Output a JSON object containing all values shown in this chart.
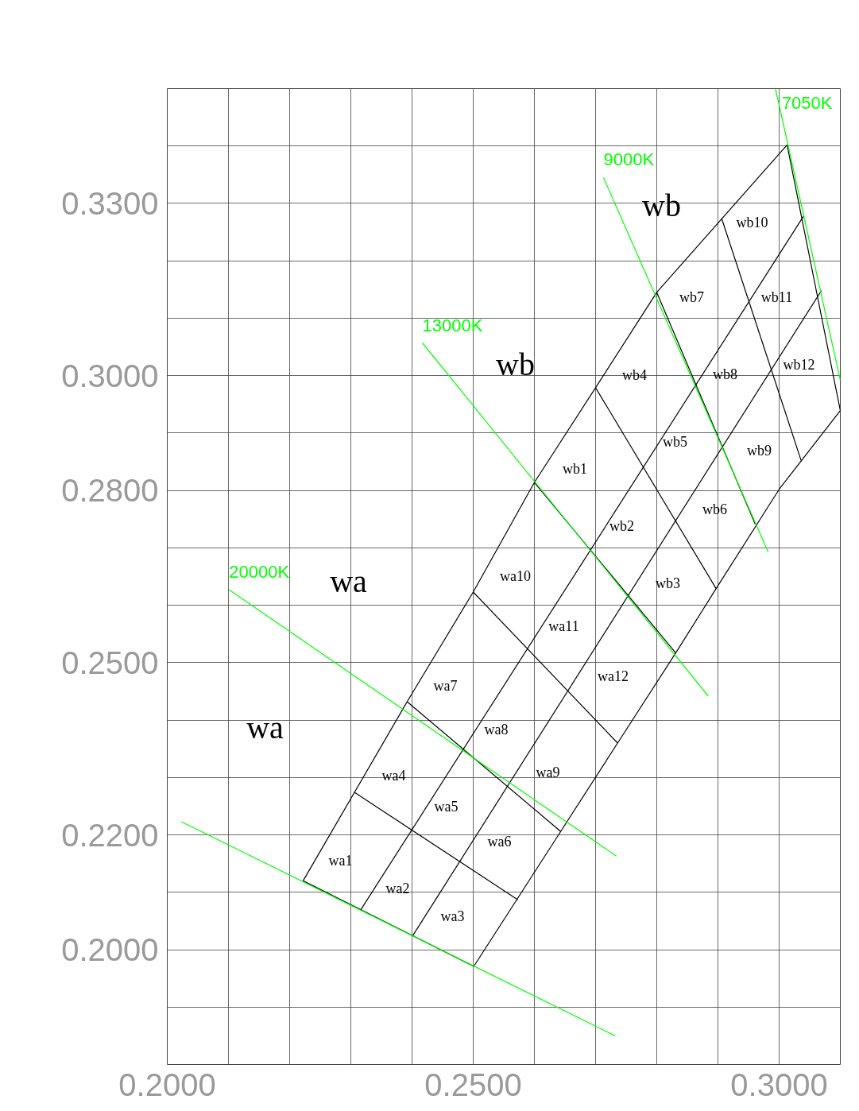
{
  "chart_data": {
    "type": "line",
    "xlim": [
      0.2,
      0.31
    ],
    "ylim": [
      0.18,
      0.35
    ],
    "grid": true,
    "marker": "none",
    "line_style": "solid",
    "xticks": [
      {
        "value": 0.2,
        "label": "0.2000"
      },
      {
        "value": 0.21,
        "label": null
      },
      {
        "value": 0.22,
        "label": null
      },
      {
        "value": 0.23,
        "label": null
      },
      {
        "value": 0.24,
        "label": null
      },
      {
        "value": 0.25,
        "label": "0.2500"
      },
      {
        "value": 0.26,
        "label": null
      },
      {
        "value": 0.27,
        "label": null
      },
      {
        "value": 0.28,
        "label": null
      },
      {
        "value": 0.29,
        "label": null
      },
      {
        "value": 0.3,
        "label": "0.3000"
      },
      {
        "value": 0.31,
        "label": null
      }
    ],
    "yticks": [
      {
        "value": 0.18,
        "label": null
      },
      {
        "value": 0.19,
        "label": null
      },
      {
        "value": 0.2,
        "label": "0.2000"
      },
      {
        "value": 0.21,
        "label": null
      },
      {
        "value": 0.22,
        "label": "0.2200"
      },
      {
        "value": 0.23,
        "label": null
      },
      {
        "value": 0.24,
        "label": null
      },
      {
        "value": 0.25,
        "label": "0.2500"
      },
      {
        "value": 0.26,
        "label": null
      },
      {
        "value": 0.27,
        "label": null
      },
      {
        "value": 0.28,
        "label": "0.2800"
      },
      {
        "value": 0.29,
        "label": null
      },
      {
        "value": 0.3,
        "label": "0.3000"
      },
      {
        "value": 0.31,
        "label": null
      },
      {
        "value": 0.32,
        "label": null
      },
      {
        "value": 0.33,
        "label": "0.3300"
      },
      {
        "value": 0.34,
        "label": null
      },
      {
        "value": 0.35,
        "label": null
      }
    ],
    "series": [
      {
        "color": "#000000",
        "x": [
          0.2222,
          0.2392,
          0.25,
          0.26,
          0.27,
          0.28,
          0.3013
        ],
        "values": [
          0.212,
          0.2432,
          0.2623,
          0.2814,
          0.2979,
          0.3145,
          0.3402
        ]
      },
      {
        "color": "#000000",
        "x": [
          0.2501,
          0.2643,
          0.2736,
          0.2831,
          0.2897,
          0.3,
          0.31
        ],
        "values": [
          0.1971,
          0.2206,
          0.236,
          0.2517,
          0.2629,
          0.2802,
          0.2939
        ]
      },
      {
        "color": "#000000",
        "x": [
          0.2222,
          0.2501
        ],
        "values": [
          0.212,
          0.1971
        ]
      },
      {
        "color": "#000000",
        "x": [
          0.2306,
          0.2573
        ],
        "values": [
          0.2274,
          0.2087
        ]
      },
      {
        "color": "#000000",
        "x": [
          0.2392,
          0.2643
        ],
        "values": [
          0.2432,
          0.2206
        ]
      },
      {
        "color": "#000000",
        "x": [
          0.25,
          0.2736
        ],
        "values": [
          0.2623,
          0.236
        ]
      },
      {
        "color": "#000000",
        "x": [
          0.26,
          0.2831
        ],
        "values": [
          0.2814,
          0.2517
        ]
      },
      {
        "color": "#000000",
        "x": [
          0.27,
          0.2897
        ],
        "values": [
          0.2979,
          0.2629
        ]
      },
      {
        "color": "#000000",
        "x": [
          0.28,
          0.2961
        ],
        "values": [
          0.3145,
          0.2741
        ]
      },
      {
        "color": "#000000",
        "x": [
          0.2906,
          0.3036
        ],
        "values": [
          0.3274,
          0.2852
        ]
      },
      {
        "color": "#000000",
        "x": [
          0.3013,
          0.31
        ],
        "values": [
          0.3402,
          0.2939
        ]
      },
      {
        "color": "#000000",
        "x": [
          0.2316,
          0.304
        ],
        "values": [
          0.2069,
          0.3278
        ]
      },
      {
        "color": "#000000",
        "x": [
          0.2401,
          0.3069
        ],
        "values": [
          0.2024,
          0.3148
        ]
      },
      {
        "color": "#00ff00",
        "x": [
          0.2023,
          0.2732
        ],
        "values": [
          0.2223,
          0.185
        ]
      },
      {
        "name": "20000K",
        "color": "#00ff00",
        "x": [
          0.2101,
          0.2734
        ],
        "values": [
          0.2627,
          0.2163
        ]
      },
      {
        "name": "13000K",
        "color": "#00ff00",
        "x": [
          0.2417,
          0.2884
        ],
        "values": [
          0.3057,
          0.2442
        ]
      },
      {
        "name": "9000K",
        "color": "#00ff00",
        "x": [
          0.2713,
          0.2982
        ],
        "values": [
          0.3345,
          0.2693
        ]
      },
      {
        "name": "7050K",
        "color": "#00ff00",
        "x": [
          0.2994,
          0.31
        ],
        "values": [
          0.35,
          0.2992
        ]
      }
    ],
    "annotations": [
      "wa",
      "wa",
      "wb",
      "wb",
      "wa1",
      "wa2",
      "wa3",
      "wa4",
      "wa5",
      "wa6",
      "wa7",
      "wa8",
      "wa9",
      "wa10",
      "wa11",
      "wa12",
      "wb1",
      "wb2",
      "wb3",
      "wb4",
      "wb5",
      "wb6",
      "wb7",
      "wb8",
      "wb9",
      "wb10",
      "wb11",
      "wb12"
    ]
  }
}
